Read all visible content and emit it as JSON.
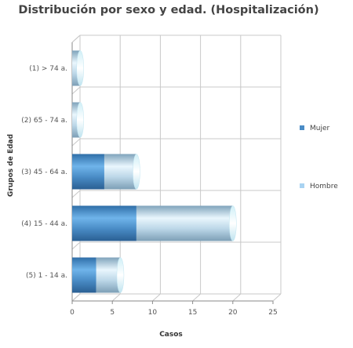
{
  "chart_data": {
    "type": "bar",
    "orientation": "horizontal",
    "stacked": true,
    "title": "Distribución por sexo y edad. (Hospitalización)",
    "xlabel": "Casos",
    "ylabel": "Grupos de Edad",
    "xlim": [
      0,
      25
    ],
    "xticks": [
      0,
      5,
      10,
      15,
      20,
      25
    ],
    "grid": true,
    "legend_position": "right",
    "categories": [
      "(1) > 74 a.",
      "(2) 65 - 74 a.",
      "(3) 45 - 64 a.",
      "(4) 15 - 44 a.",
      "(5) 1 - 14 a."
    ],
    "series": [
      {
        "name": "Mujer",
        "color": "#4a8cc6",
        "values": [
          0,
          0,
          4,
          8,
          3
        ]
      },
      {
        "name": "Hombre",
        "color": "#a9d3f2",
        "values": [
          1,
          1,
          4,
          12,
          3
        ]
      }
    ]
  }
}
